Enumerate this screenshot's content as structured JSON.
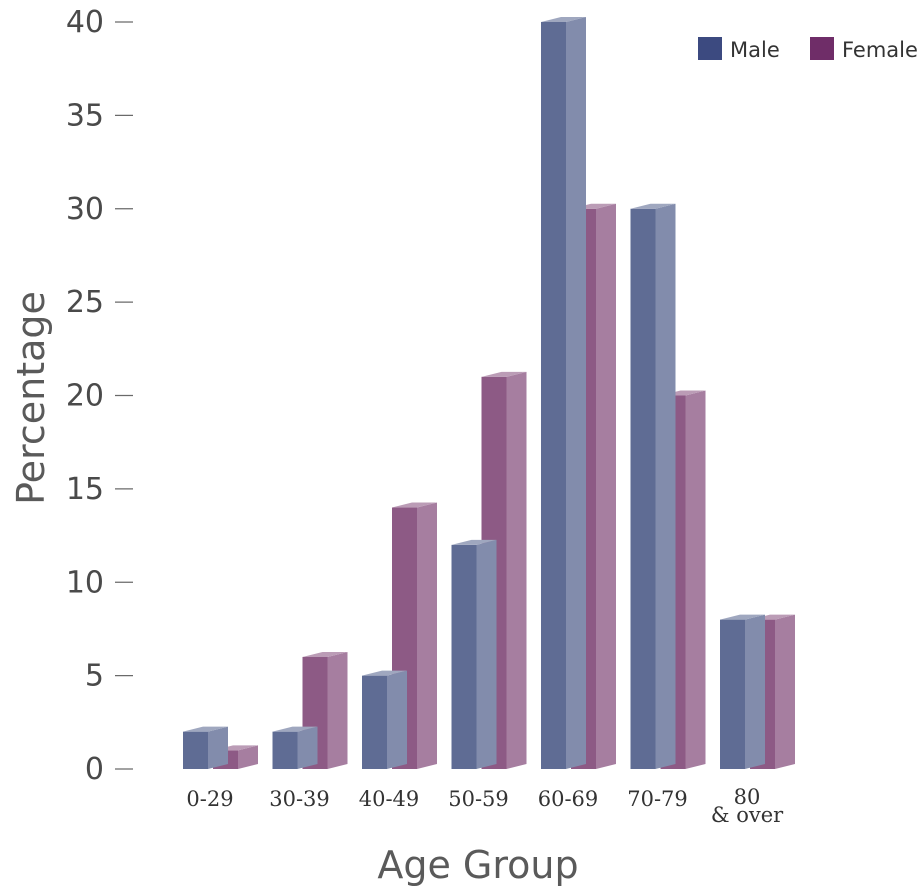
{
  "chart_data": {
    "type": "bar",
    "style": "3d-grouped",
    "categories": [
      "0-29",
      "30-39",
      "40-49",
      "50-59",
      "60-69",
      "70-79",
      "80\n& over"
    ],
    "series": [
      {
        "name": "Male",
        "values": [
          2,
          2,
          5,
          12,
          40,
          30,
          8
        ],
        "color": "#5f6c94",
        "legend_color": "#3c4a80"
      },
      {
        "name": "Female",
        "values": [
          1,
          6,
          14,
          21,
          30,
          20,
          8
        ],
        "color": "#8d5a85",
        "legend_color": "#6f2d68"
      }
    ],
    "xlabel": "Age Group",
    "ylabel": "Percentage",
    "ylim": [
      0,
      40
    ],
    "yticks": [
      0,
      5,
      10,
      15,
      20,
      25,
      30,
      35,
      40
    ],
    "grid": false,
    "legend_position": "top-right"
  }
}
